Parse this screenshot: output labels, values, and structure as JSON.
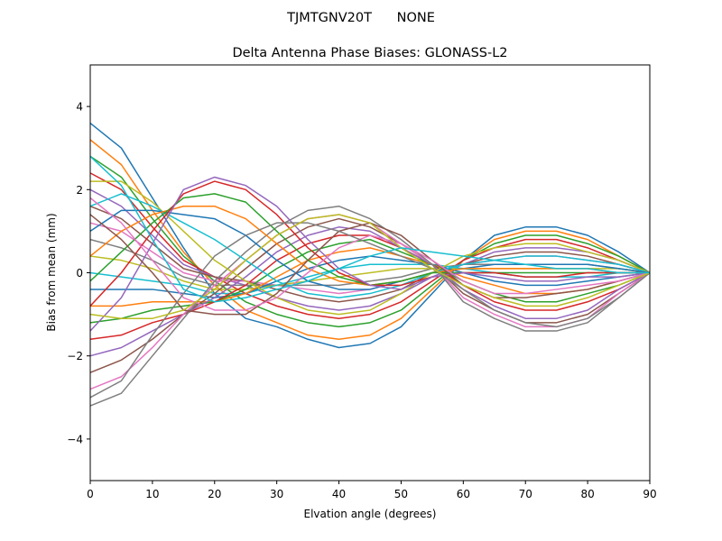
{
  "chart_data": {
    "type": "line",
    "suptitle": "TJMTGNV20T      NONE",
    "title": "Delta Antenna Phase Biases: GLONASS-L2",
    "xlabel": "Elvation angle (degrees)",
    "ylabel": "Bias from mean (mm)",
    "xlim": [
      0,
      90
    ],
    "ylim": [
      -5,
      5
    ],
    "x": [
      0,
      5,
      10,
      15,
      20,
      25,
      30,
      35,
      40,
      45,
      50,
      55,
      60,
      65,
      70,
      75,
      80,
      85,
      90
    ],
    "xticks": [
      {
        "value": 0,
        "label": "0"
      },
      {
        "value": 10,
        "label": "10"
      },
      {
        "value": 20,
        "label": "20"
      },
      {
        "value": 30,
        "label": "30"
      },
      {
        "value": 40,
        "label": "40"
      },
      {
        "value": 50,
        "label": "50"
      },
      {
        "value": 60,
        "label": "60"
      },
      {
        "value": 70,
        "label": "70"
      },
      {
        "value": 80,
        "label": "80"
      },
      {
        "value": 90,
        "label": "90"
      }
    ],
    "yticks": [
      {
        "value": -4,
        "label": "−4"
      },
      {
        "value": -2,
        "label": "−2"
      },
      {
        "value": 0,
        "label": "0"
      },
      {
        "value": 2,
        "label": "2"
      },
      {
        "value": 4,
        "label": "4"
      }
    ],
    "grid": false,
    "series": [
      {
        "color": "#1f77b4",
        "values": [
          3.6,
          3.0,
          1.8,
          0.6,
          -0.5,
          -1.1,
          -1.3,
          -1.6,
          -1.8,
          -1.7,
          -1.3,
          -0.5,
          0.3,
          0.9,
          1.1,
          1.1,
          0.9,
          0.5,
          0
        ]
      },
      {
        "color": "#ff7f0e",
        "values": [
          3.2,
          2.6,
          1.5,
          0.5,
          -0.3,
          -0.9,
          -1.2,
          -1.5,
          -1.6,
          -1.5,
          -1.1,
          -0.4,
          0.3,
          0.8,
          1.0,
          1.0,
          0.8,
          0.4,
          0
        ]
      },
      {
        "color": "#2ca02c",
        "values": [
          2.8,
          2.3,
          1.3,
          0.4,
          -0.2,
          -0.7,
          -1.0,
          -1.2,
          -1.3,
          -1.2,
          -0.9,
          -0.3,
          0.3,
          0.7,
          0.9,
          0.9,
          0.7,
          0.4,
          0
        ]
      },
      {
        "color": "#d62728",
        "values": [
          2.4,
          2.0,
          1.1,
          0.3,
          -0.1,
          -0.5,
          -0.8,
          -1.0,
          -1.1,
          -1.0,
          -0.7,
          -0.2,
          0.3,
          0.6,
          0.8,
          0.8,
          0.6,
          0.3,
          0
        ]
      },
      {
        "color": "#9467bd",
        "values": [
          2.0,
          1.6,
          0.9,
          0.2,
          -0.1,
          -0.3,
          -0.6,
          -0.8,
          -0.9,
          -0.8,
          -0.5,
          -0.1,
          0.2,
          0.5,
          0.6,
          0.6,
          0.5,
          0.3,
          0
        ]
      },
      {
        "color": "#8c564b",
        "values": [
          1.6,
          1.3,
          0.7,
          0.1,
          -0.1,
          -0.2,
          -0.4,
          -0.6,
          -0.7,
          -0.6,
          -0.4,
          0.0,
          0.2,
          0.4,
          0.5,
          0.5,
          0.4,
          0.2,
          0
        ]
      },
      {
        "color": "#e377c2",
        "values": [
          1.2,
          1.0,
          0.5,
          0.0,
          -0.2,
          -0.2,
          -0.3,
          -0.4,
          -0.5,
          -0.4,
          -0.2,
          0.0,
          0.2,
          0.3,
          0.4,
          0.4,
          0.3,
          0.2,
          0
        ]
      },
      {
        "color": "#7f7f7f",
        "values": [
          0.8,
          0.6,
          0.3,
          -0.1,
          -0.3,
          -0.3,
          -0.3,
          -0.3,
          -0.3,
          -0.2,
          -0.1,
          0.1,
          0.2,
          0.2,
          0.2,
          0.2,
          0.2,
          0.1,
          0
        ]
      },
      {
        "color": "#bcbd22",
        "values": [
          0.4,
          0.3,
          0.1,
          -0.2,
          -0.4,
          -0.4,
          -0.3,
          -0.2,
          -0.1,
          0.0,
          0.1,
          0.1,
          0.1,
          0.1,
          0.1,
          0.1,
          0.1,
          0.1,
          0
        ]
      },
      {
        "color": "#17becf",
        "values": [
          0.0,
          -0.1,
          -0.2,
          -0.3,
          -0.5,
          -0.5,
          -0.3,
          -0.1,
          0.1,
          0.2,
          0.2,
          0.2,
          0.1,
          0.0,
          -0.1,
          -0.1,
          -0.1,
          0.0,
          0
        ]
      },
      {
        "color": "#1f77b4",
        "values": [
          -0.4,
          -0.4,
          -0.4,
          -0.5,
          -0.6,
          -0.5,
          -0.2,
          0.1,
          0.3,
          0.4,
          0.3,
          0.2,
          0.0,
          -0.2,
          -0.3,
          -0.3,
          -0.2,
          -0.1,
          0
        ]
      },
      {
        "color": "#ff7f0e",
        "values": [
          -0.8,
          -0.8,
          -0.7,
          -0.7,
          -0.7,
          -0.5,
          -0.1,
          0.3,
          0.5,
          0.6,
          0.4,
          0.2,
          -0.1,
          -0.3,
          -0.5,
          -0.5,
          -0.4,
          -0.2,
          0
        ]
      },
      {
        "color": "#2ca02c",
        "values": [
          -1.2,
          -1.1,
          -0.9,
          -0.8,
          -0.7,
          -0.4,
          0.1,
          0.5,
          0.7,
          0.8,
          0.5,
          0.2,
          -0.2,
          -0.5,
          -0.7,
          -0.7,
          -0.5,
          -0.3,
          0
        ]
      },
      {
        "color": "#d62728",
        "values": [
          -1.6,
          -1.5,
          -1.2,
          -1.0,
          -0.7,
          -0.3,
          0.3,
          0.7,
          0.9,
          0.9,
          0.6,
          0.2,
          -0.3,
          -0.7,
          -0.9,
          -0.9,
          -0.7,
          -0.4,
          0
        ]
      },
      {
        "color": "#9467bd",
        "values": [
          -2.0,
          -1.8,
          -1.4,
          -1.0,
          -0.6,
          -0.1,
          0.5,
          0.9,
          1.1,
          1.0,
          0.6,
          0.2,
          -0.4,
          -0.8,
          -1.1,
          -1.1,
          -0.9,
          -0.4,
          0
        ]
      },
      {
        "color": "#8c564b",
        "values": [
          -2.4,
          -2.1,
          -1.6,
          -1.0,
          -0.5,
          0.1,
          0.7,
          1.1,
          1.3,
          1.1,
          0.7,
          0.2,
          -0.5,
          -0.9,
          -1.2,
          -1.2,
          -1.0,
          -0.5,
          0
        ]
      },
      {
        "color": "#e377c2",
        "values": [
          -2.8,
          -2.5,
          -1.8,
          -1.0,
          -0.3,
          0.3,
          0.9,
          1.3,
          1.4,
          1.2,
          0.7,
          0.2,
          -0.6,
          -1.0,
          -1.3,
          -1.3,
          -1.1,
          -0.5,
          0
        ]
      },
      {
        "color": "#7f7f7f",
        "values": [
          -3.2,
          -2.9,
          -2.0,
          -1.1,
          -0.2,
          0.5,
          1.1,
          1.5,
          1.6,
          1.3,
          0.8,
          0.2,
          -0.7,
          -1.1,
          -1.4,
          -1.4,
          -1.2,
          -0.6,
          0
        ]
      },
      {
        "color": "#bcbd22",
        "values": [
          2.2,
          2.2,
          1.7,
          1.0,
          0.3,
          -0.2,
          -0.6,
          -0.9,
          -1.0,
          -0.9,
          -0.5,
          0.0,
          0.4,
          0.6,
          0.7,
          0.7,
          0.5,
          0.3,
          0
        ]
      },
      {
        "color": "#17becf",
        "values": [
          1.6,
          1.9,
          1.6,
          1.2,
          0.8,
          0.3,
          -0.2,
          -0.5,
          -0.6,
          -0.5,
          -0.3,
          0.0,
          0.2,
          0.3,
          0.4,
          0.4,
          0.3,
          0.2,
          0
        ]
      },
      {
        "color": "#1f77b4",
        "values": [
          1.0,
          1.5,
          1.5,
          1.4,
          1.3,
          0.9,
          0.3,
          -0.2,
          -0.4,
          -0.4,
          -0.2,
          0.0,
          0.1,
          0.2,
          0.2,
          0.2,
          0.2,
          0.1,
          0
        ]
      },
      {
        "color": "#ff7f0e",
        "values": [
          0.4,
          1.0,
          1.4,
          1.6,
          1.6,
          1.3,
          0.7,
          0.1,
          -0.2,
          -0.3,
          -0.2,
          0.0,
          0.1,
          0.1,
          0.1,
          0.1,
          0.1,
          0.0,
          0
        ]
      },
      {
        "color": "#2ca02c",
        "values": [
          -0.2,
          0.5,
          1.2,
          1.8,
          1.9,
          1.7,
          1.0,
          0.3,
          -0.1,
          -0.3,
          -0.2,
          0.0,
          0.0,
          0.0,
          0.0,
          0.0,
          0.0,
          0.0,
          0
        ]
      },
      {
        "color": "#d62728",
        "values": [
          -0.8,
          0.0,
          1.0,
          1.9,
          2.2,
          2.0,
          1.4,
          0.6,
          0.0,
          -0.3,
          -0.3,
          -0.1,
          0.0,
          0.0,
          -0.1,
          -0.1,
          0.0,
          0.0,
          0
        ]
      },
      {
        "color": "#9467bd",
        "values": [
          -1.4,
          -0.6,
          0.7,
          2.0,
          2.3,
          2.1,
          1.6,
          0.8,
          0.1,
          -0.3,
          -0.4,
          -0.1,
          0.0,
          -0.1,
          -0.2,
          -0.2,
          -0.1,
          -0.1,
          0
        ]
      },
      {
        "color": "#8c564b",
        "values": [
          1.4,
          0.8,
          0.0,
          -0.9,
          -1.0,
          -1.0,
          -0.5,
          0.3,
          1.0,
          1.2,
          0.9,
          0.3,
          -0.3,
          -0.6,
          -0.6,
          -0.5,
          -0.4,
          -0.2,
          0
        ]
      },
      {
        "color": "#e377c2",
        "values": [
          1.8,
          1.2,
          0.3,
          -0.6,
          -0.9,
          -0.9,
          -0.6,
          0.0,
          0.6,
          0.9,
          0.7,
          0.3,
          -0.2,
          -0.5,
          -0.5,
          -0.4,
          -0.3,
          -0.2,
          0
        ]
      },
      {
        "color": "#7f7f7f",
        "values": [
          -3.0,
          -2.6,
          -1.5,
          -0.5,
          0.4,
          0.9,
          1.2,
          1.2,
          1.0,
          0.7,
          0.4,
          0.1,
          -0.4,
          -0.9,
          -1.2,
          -1.3,
          -1.1,
          -0.6,
          0
        ]
      },
      {
        "color": "#bcbd22",
        "values": [
          -1.0,
          -1.1,
          -1.1,
          -0.9,
          -0.4,
          0.3,
          0.9,
          1.3,
          1.4,
          1.2,
          0.6,
          0.1,
          -0.3,
          -0.6,
          -0.8,
          -0.8,
          -0.6,
          -0.3,
          0
        ]
      },
      {
        "color": "#17becf",
        "values": [
          2.8,
          2.1,
          0.8,
          -0.4,
          -0.7,
          -0.6,
          -0.4,
          -0.2,
          0.1,
          0.4,
          0.6,
          0.5,
          0.4,
          0.3,
          0.2,
          0.1,
          0.1,
          0.0,
          0
        ]
      }
    ]
  }
}
